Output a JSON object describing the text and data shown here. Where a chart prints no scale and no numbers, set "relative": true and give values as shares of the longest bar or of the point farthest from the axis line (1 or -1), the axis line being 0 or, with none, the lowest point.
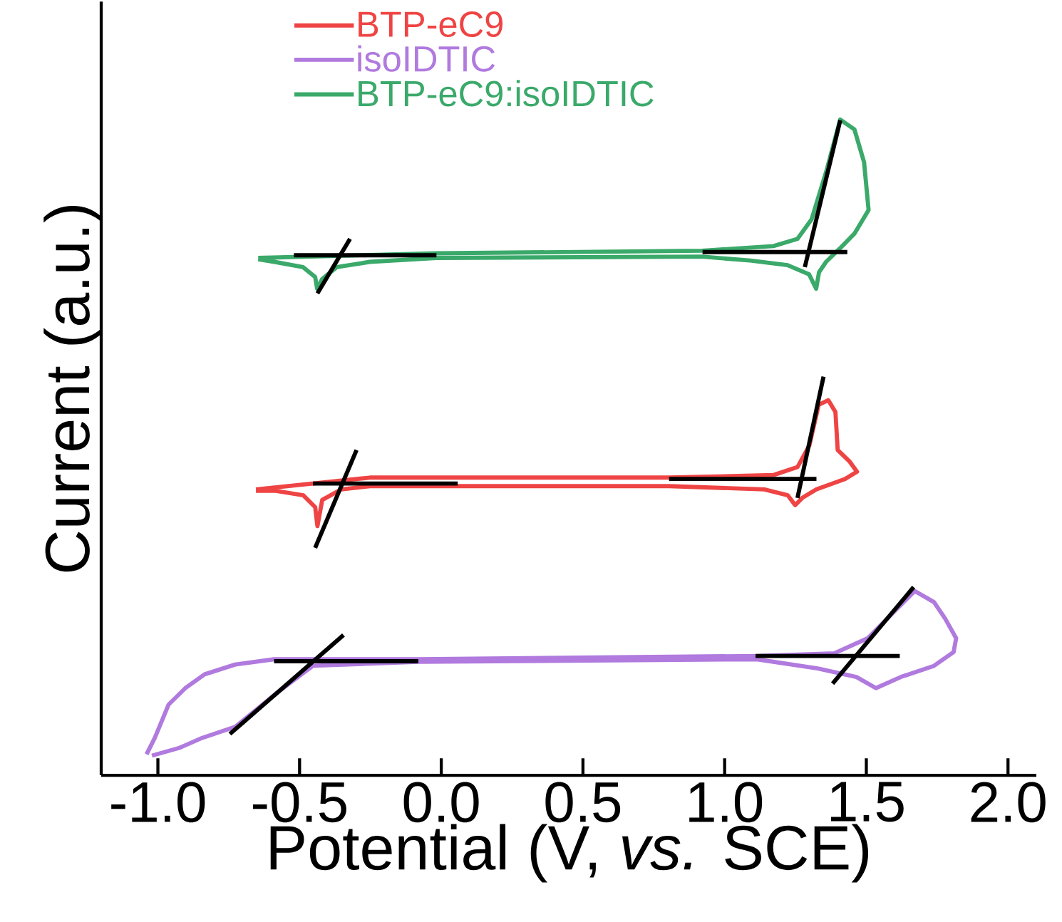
{
  "chart_data": {
    "type": "line",
    "relative": true,
    "xlabel": "Potential (V, *vs.* SCE)",
    "ylabel": "Current (a.u.)",
    "xlim": [
      -1.2,
      2.1
    ],
    "xticks": [
      {
        "value": -1.0,
        "label": "-1.0"
      },
      {
        "value": -0.5,
        "label": "-0.5"
      },
      {
        "value": 0.0,
        "label": "0.0"
      },
      {
        "value": 0.5,
        "label": "0.5"
      },
      {
        "value": 1.0,
        "label": "1.0"
      },
      {
        "value": 1.5,
        "label": "1.5"
      },
      {
        "value": 2.0,
        "label": "2.0"
      }
    ],
    "legend": "top",
    "marker": "none",
    "line_style": "solid",
    "grid": false,
    "series": [
      {
        "name": "BTP-eC9",
        "color": "#ef4444",
        "x": [
          -0.654,
          -0.252,
          0.804,
          1.173,
          1.257,
          1.299,
          1.332,
          1.366,
          1.391,
          1.399,
          1.442,
          1.467,
          1.425,
          1.324,
          1.274,
          1.249,
          1.223,
          1.14,
          0.804,
          -0.252,
          -0.353,
          -0.42,
          -0.437,
          -0.445,
          -0.487,
          -0.588,
          -0.654
        ],
        "values": [
          0.436,
          0.454,
          0.454,
          0.458,
          0.47,
          0.503,
          0.565,
          0.572,
          0.554,
          0.496,
          0.478,
          0.463,
          0.452,
          0.436,
          0.423,
          0.412,
          0.427,
          0.436,
          0.441,
          0.441,
          0.436,
          0.42,
          0.38,
          0.409,
          0.427,
          0.434,
          0.434
        ]
      },
      {
        "name": "isoIDTIC",
        "color": "#b07ade",
        "x": [
          -1.04,
          -1.011,
          -0.962,
          -0.903,
          -0.835,
          -0.727,
          -0.59,
          -0.081,
          1.113,
          1.387,
          1.505,
          1.583,
          1.671,
          1.739,
          1.778,
          1.817,
          1.808,
          1.739,
          1.622,
          1.534,
          1.465,
          1.328,
          1.113,
          -0.081,
          -0.453,
          -0.57,
          -0.727,
          -0.844,
          -0.923,
          -1.021
        ],
        "values": [
          0.032,
          0.057,
          0.108,
          0.133,
          0.154,
          0.169,
          0.177,
          0.177,
          0.182,
          0.186,
          0.209,
          0.243,
          0.281,
          0.264,
          0.239,
          0.209,
          0.188,
          0.167,
          0.15,
          0.133,
          0.15,
          0.163,
          0.177,
          0.173,
          0.167,
          0.129,
          0.074,
          0.057,
          0.042,
          0.03
        ]
      },
      {
        "name": "BTP-eC9:isoIDTIC",
        "color": "#3aa96a",
        "x": [
          -0.646,
          -0.017,
          0.92,
          1.172,
          1.257,
          1.307,
          1.358,
          1.408,
          1.458,
          1.492,
          1.508,
          1.458,
          1.408,
          1.358,
          1.333,
          1.323,
          1.298,
          1.222,
          1.09,
          0.92,
          -0.017,
          -0.252,
          -0.369,
          -0.42,
          -0.438,
          -0.445,
          -0.488,
          -0.589,
          -0.646
        ],
        "values": [
          0.789,
          0.796,
          0.8,
          0.807,
          0.818,
          0.848,
          0.92,
          1.0,
          0.985,
          0.935,
          0.862,
          0.826,
          0.804,
          0.783,
          0.767,
          0.742,
          0.764,
          0.778,
          0.785,
          0.791,
          0.789,
          0.783,
          0.775,
          0.757,
          0.742,
          0.76,
          0.775,
          0.783,
          0.787
        ]
      },
      {
        "type": "line",
        "color": "#000000",
        "x": [
          -0.453,
          0.058
        ],
        "values": [
          0.445,
          0.445
        ]
      },
      {
        "type": "line",
        "color": "#000000",
        "x": [
          -0.445,
          -0.299
        ],
        "values": [
          0.347,
          0.496
        ]
      },
      {
        "type": "line",
        "color": "#000000",
        "x": [
          0.804,
          1.324
        ],
        "values": [
          0.452,
          0.452
        ]
      },
      {
        "type": "line",
        "color": "#000000",
        "x": [
          1.257,
          1.349
        ],
        "values": [
          0.423,
          0.608
        ]
      },
      {
        "type": "line",
        "color": "#000000",
        "x": [
          -0.59,
          -0.081
        ],
        "values": [
          0.174,
          0.174
        ]
      },
      {
        "type": "line",
        "color": "#000000",
        "x": [
          -0.746,
          -0.345
        ],
        "values": [
          0.063,
          0.214
        ]
      },
      {
        "type": "line",
        "color": "#000000",
        "x": [
          1.109,
          1.618
        ],
        "values": [
          0.182,
          0.182
        ]
      },
      {
        "type": "line",
        "color": "#000000",
        "x": [
          1.381,
          1.667
        ],
        "values": [
          0.14,
          0.287
        ]
      },
      {
        "type": "line",
        "color": "#000000",
        "x": [
          -0.52,
          -0.017
        ],
        "values": [
          0.793,
          0.793
        ]
      },
      {
        "type": "line",
        "color": "#000000",
        "x": [
          -0.437,
          -0.322
        ],
        "values": [
          0.735,
          0.818
        ]
      },
      {
        "type": "line",
        "color": "#000000",
        "x": [
          0.922,
          1.433
        ],
        "values": [
          0.798,
          0.798
        ]
      },
      {
        "type": "line",
        "color": "#000000",
        "x": [
          1.283,
          1.408
        ],
        "values": [
          0.775,
          0.999
        ]
      }
    ]
  }
}
